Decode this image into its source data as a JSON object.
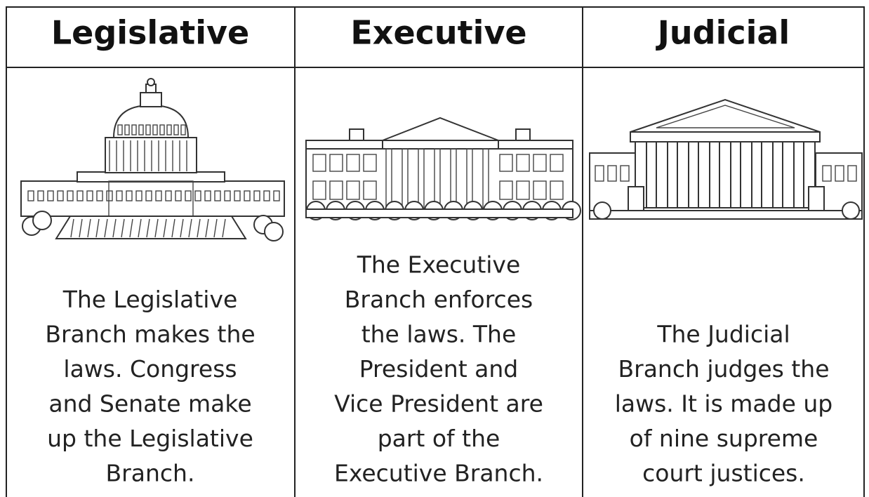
{
  "columns": [
    {
      "heading": "Legislative",
      "description_lines": [
        "The Legislative",
        "Branch makes the",
        "laws. Congress",
        "and Senate make",
        "up the Legislative",
        "Branch."
      ]
    },
    {
      "heading": "Executive",
      "description_lines": [
        "The Executive",
        "Branch enforces",
        "the laws. The",
        "President and",
        "Vice President are",
        "part of the",
        "Executive Branch."
      ]
    },
    {
      "heading": "Judicial",
      "description_lines": [
        "The Judicial",
        "Branch judges the",
        "laws. It is made up",
        "of nine supreme",
        "court justices."
      ]
    }
  ]
}
